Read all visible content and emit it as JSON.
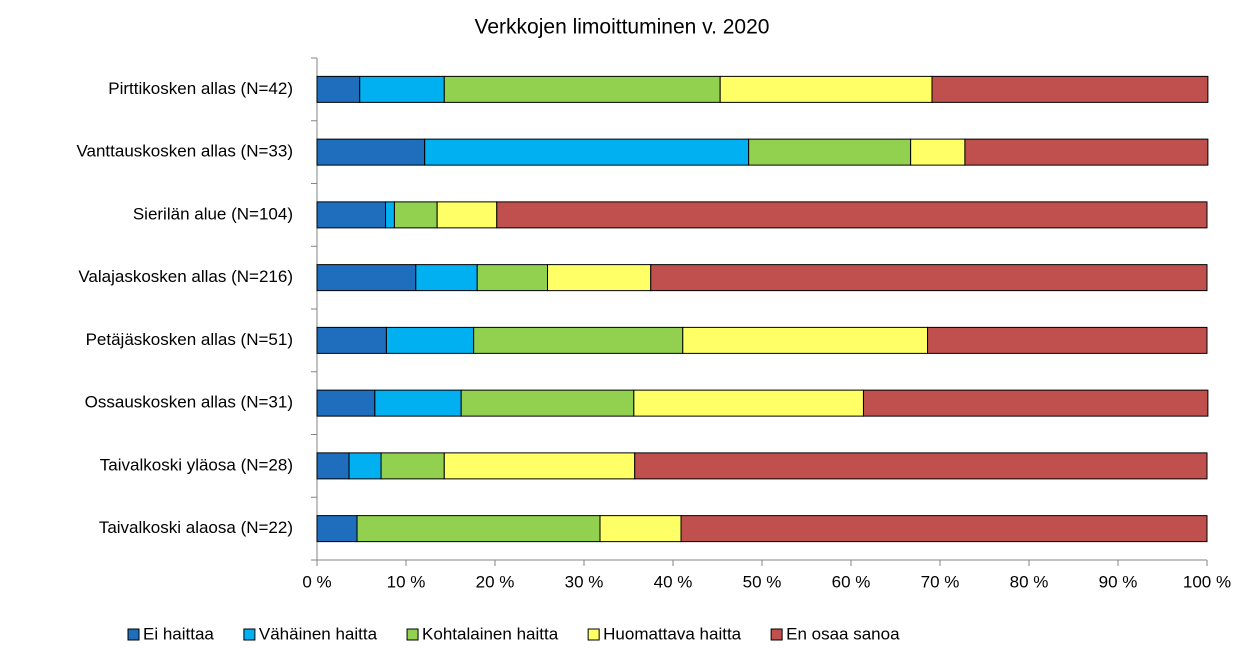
{
  "chart_data": {
    "type": "stacked_barh",
    "title": "Verkkojen limoittuminen v. 2020",
    "categories": [
      "Pirttikosken allas (N=42)",
      "Vanttauskosken allas (N=33)",
      "Sierilän alue (N=104)",
      "Valajaskosken allas (N=216)",
      "Petäjäskosken allas (N=51)",
      "Ossauskosken allas (N=31)",
      "Taivalkoski yläosa (N=28)",
      "Taivalkoski alaosa (N=22)"
    ],
    "series": [
      {
        "name": "Ei haittaa",
        "color": "#1f6dbd",
        "values": [
          4.8,
          12.1,
          7.7,
          11.1,
          7.8,
          6.5,
          3.6,
          4.5
        ]
      },
      {
        "name": "Vähäinen haitta",
        "color": "#00b0f0",
        "values": [
          9.5,
          36.4,
          1.0,
          6.9,
          9.8,
          9.7,
          3.6,
          0
        ]
      },
      {
        "name": "Kohtalainen haitta",
        "color": "#92d050",
        "values": [
          31.0,
          18.2,
          4.8,
          7.9,
          23.5,
          19.4,
          7.1,
          27.3
        ]
      },
      {
        "name": "Huomattava haitta",
        "color": "#ffff66",
        "values": [
          23.8,
          6.1,
          6.7,
          11.6,
          27.5,
          25.8,
          21.4,
          9.1
        ]
      },
      {
        "name": "En osaa sanoa",
        "color": "#c0504d",
        "values": [
          31.0,
          27.3,
          79.8,
          62.5,
          31.4,
          38.7,
          64.3,
          59.1
        ]
      }
    ],
    "xlim": [
      0,
      100
    ],
    "xticks": [
      {
        "value": 0,
        "label": "0 %"
      },
      {
        "value": 10,
        "label": "10 %"
      },
      {
        "value": 20,
        "label": "20 %"
      },
      {
        "value": 30,
        "label": "30 %"
      },
      {
        "value": 40,
        "label": "40 %"
      },
      {
        "value": 50,
        "label": "50 %"
      },
      {
        "value": 60,
        "label": "60 %"
      },
      {
        "value": 70,
        "label": "70 %"
      },
      {
        "value": 80,
        "label": "80 %"
      },
      {
        "value": 90,
        "label": "90 %"
      },
      {
        "value": 100,
        "label": "100 %"
      }
    ],
    "legend": "bottom"
  }
}
